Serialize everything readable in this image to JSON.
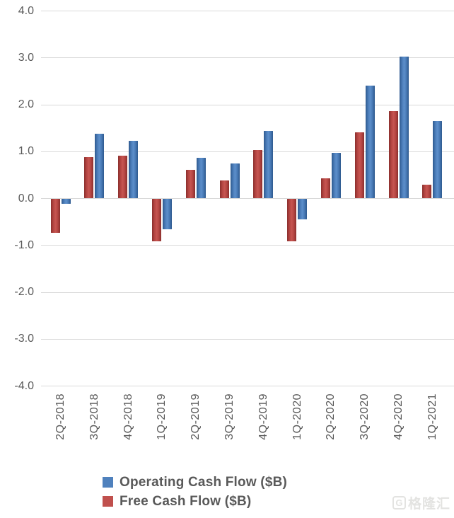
{
  "chart_data": {
    "type": "bar",
    "categories": [
      "2Q-2018",
      "3Q-2018",
      "4Q-2018",
      "1Q-2019",
      "2Q-2019",
      "3Q-2019",
      "4Q-2019",
      "1Q-2020",
      "2Q-2020",
      "3Q-2020",
      "4Q-2020",
      "1Q-2021"
    ],
    "series": [
      {
        "name": "Operating Cash Flow ($B)",
        "color": "#4f81bd",
        "values": [
          -0.1,
          1.38,
          1.23,
          -0.65,
          0.86,
          0.74,
          1.43,
          -0.44,
          0.96,
          2.4,
          3.02,
          1.64
        ]
      },
      {
        "name": "Free Cash Flow ($B)",
        "color": "#c0504d",
        "values": [
          -0.72,
          0.88,
          0.91,
          -0.91,
          0.6,
          0.37,
          1.02,
          -0.9,
          0.42,
          1.4,
          1.86,
          0.29
        ]
      }
    ],
    "title": "",
    "xlabel": "",
    "ylabel": "",
    "ylim": [
      -4.0,
      4.0
    ],
    "ytick_labels": [
      "4.0",
      "3.0",
      "2.0",
      "1.0",
      "0.0",
      "-1.0",
      "-2.0",
      "-3.0",
      "-4.0"
    ],
    "grid": true,
    "gridline_color": "#d9d9d9",
    "axis_text_color": "#595959",
    "bar_draw_order": [
      1,
      0
    ],
    "legend_position": "bottom-left",
    "x_tick_rotation_deg": 90
  },
  "watermark": {
    "logo": "G",
    "text": "格隆汇"
  }
}
